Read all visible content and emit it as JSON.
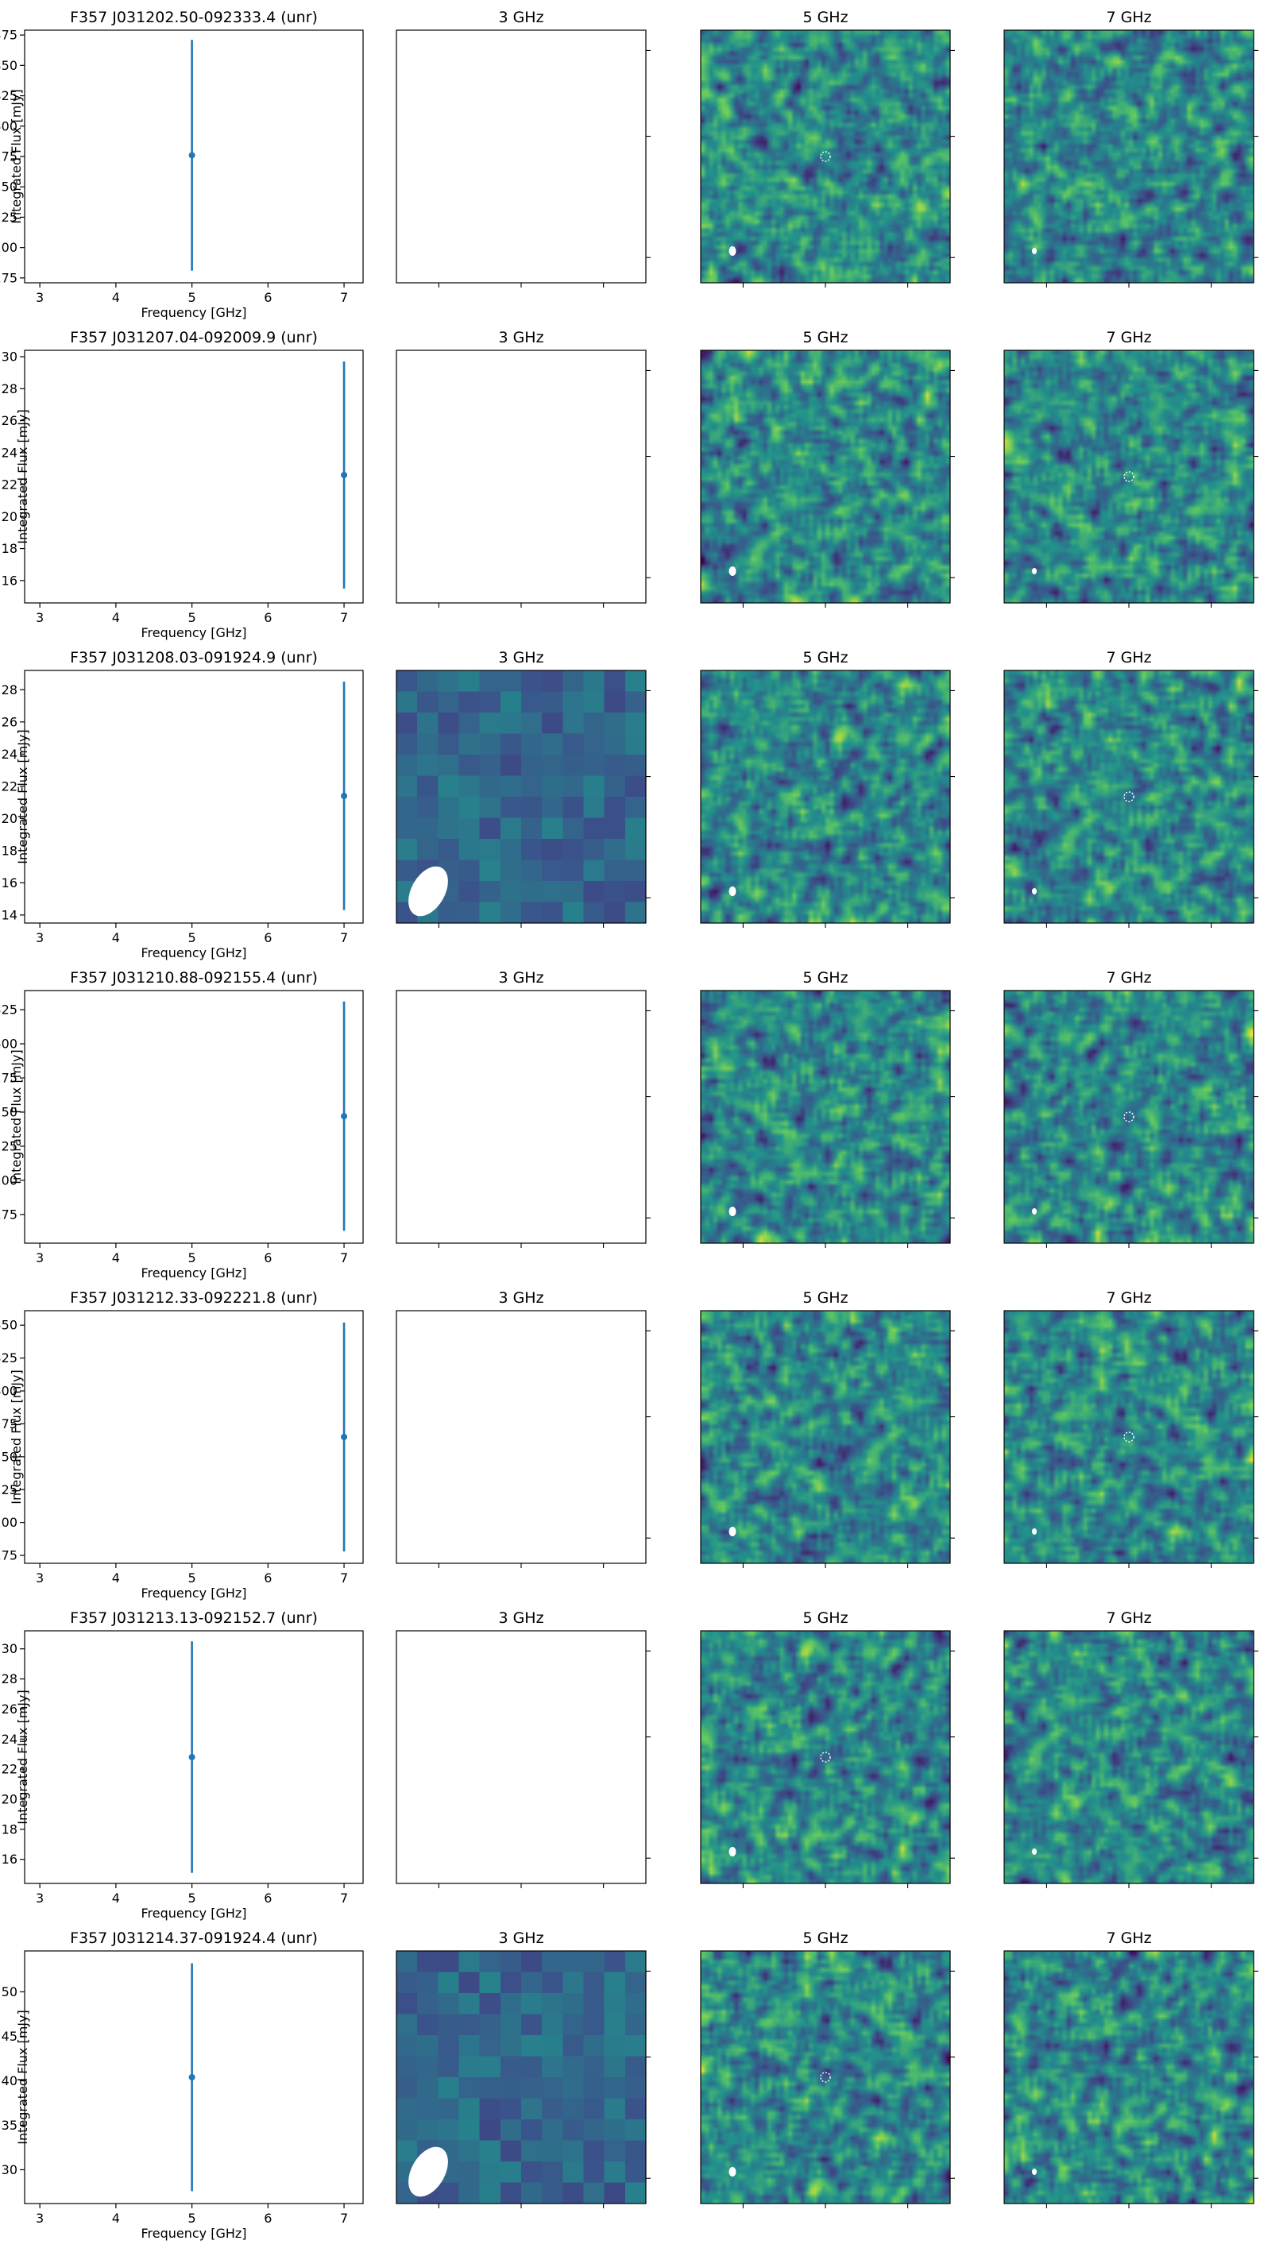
{
  "figure": {
    "background": "#ffffff",
    "series_color": "#1f77b4",
    "viridis": [
      "#440154",
      "#3b528b",
      "#21918c",
      "#5ec962",
      "#fde725"
    ],
    "empty_panel_color": "#ffffff"
  },
  "chart_data": [
    {
      "type": "scatter",
      "title": "F357 J031202.50-092333.4 (unr)",
      "xlabel": "Frequency [GHz]",
      "ylabel": "Integrated Flux [mJy]",
      "xlim": [
        2.8,
        7.25
      ],
      "ylim": [
        0.171,
        0.379
      ],
      "xticks": [
        "3",
        "4",
        "5",
        "6",
        "7"
      ],
      "yticks": [
        "0.175",
        "0.200",
        "0.225",
        "0.250",
        "0.275",
        "0.300",
        "0.325",
        "0.350",
        "0.375"
      ],
      "points": [
        {
          "x": 5,
          "y": 0.276,
          "err": 0.095
        }
      ],
      "image_panels": [
        {
          "title": "3 GHz",
          "image": "empty"
        },
        {
          "title": "5 GHz",
          "image": "noise",
          "source_marker": true
        },
        {
          "title": "7 GHz",
          "image": "noise",
          "source_marker": false
        }
      ]
    },
    {
      "type": "scatter",
      "title": "F357 J031207.04-092009.9 (unr)",
      "xlabel": "Frequency [GHz]",
      "ylabel": "Integrated Flux [mJy]",
      "xlim": [
        2.8,
        7.25
      ],
      "ylim": [
        0.146,
        0.304
      ],
      "xticks": [
        "3",
        "4",
        "5",
        "6",
        "7"
      ],
      "yticks": [
        "0.16",
        "0.18",
        "0.20",
        "0.22",
        "0.24",
        "0.26",
        "0.28",
        "0.30"
      ],
      "points": [
        {
          "x": 7,
          "y": 0.226,
          "err": 0.071
        }
      ],
      "image_panels": [
        {
          "title": "3 GHz",
          "image": "empty"
        },
        {
          "title": "5 GHz",
          "image": "noise",
          "source_marker": false
        },
        {
          "title": "7 GHz",
          "image": "noise",
          "source_marker": true
        }
      ]
    },
    {
      "type": "scatter",
      "title": "F357 J031208.03-091924.9 (unr)",
      "xlabel": "Frequency [GHz]",
      "ylabel": "Integrated Flux [mJy]",
      "xlim": [
        2.8,
        7.25
      ],
      "ylim": [
        0.135,
        0.292
      ],
      "xticks": [
        "3",
        "4",
        "5",
        "6",
        "7"
      ],
      "yticks": [
        "0.14",
        "0.16",
        "0.18",
        "0.20",
        "0.22",
        "0.24",
        "0.26",
        "0.28"
      ],
      "points": [
        {
          "x": 7,
          "y": 0.214,
          "err": 0.071
        }
      ],
      "image_panels": [
        {
          "title": "3 GHz",
          "image": "coarse",
          "source_marker": false
        },
        {
          "title": "5 GHz",
          "image": "noise",
          "source_marker": false
        },
        {
          "title": "7 GHz",
          "image": "noise",
          "source_marker": true
        }
      ]
    },
    {
      "type": "scatter",
      "title": "F357 J031210.88-092155.4 (unr)",
      "xlabel": "Frequency [GHz]",
      "ylabel": "Integrated Flux [mJy]",
      "xlim": [
        2.8,
        7.25
      ],
      "ylim": [
        0.154,
        0.339
      ],
      "xticks": [
        "3",
        "4",
        "5",
        "6",
        "7"
      ],
      "yticks": [
        "0.175",
        "0.200",
        "0.225",
        "0.250",
        "0.275",
        "0.300",
        "0.325"
      ],
      "points": [
        {
          "x": 7,
          "y": 0.247,
          "err": 0.084
        }
      ],
      "image_panels": [
        {
          "title": "3 GHz",
          "image": "empty"
        },
        {
          "title": "5 GHz",
          "image": "noise",
          "source_marker": false
        },
        {
          "title": "7 GHz",
          "image": "noise",
          "source_marker": true
        }
      ]
    },
    {
      "type": "scatter",
      "title": "F357 J031212.33-092221.8 (unr)",
      "xlabel": "Frequency [GHz]",
      "ylabel": "Integrated Flux [mJy]",
      "xlim": [
        2.8,
        7.25
      ],
      "ylim": [
        0.169,
        0.361
      ],
      "xticks": [
        "3",
        "4",
        "5",
        "6",
        "7"
      ],
      "yticks": [
        "0.175",
        "0.200",
        "0.225",
        "0.250",
        "0.275",
        "0.300",
        "0.325",
        "0.350"
      ],
      "points": [
        {
          "x": 7,
          "y": 0.265,
          "err": 0.087
        }
      ],
      "image_panels": [
        {
          "title": "3 GHz",
          "image": "empty"
        },
        {
          "title": "5 GHz",
          "image": "noise",
          "source_marker": false
        },
        {
          "title": "7 GHz",
          "image": "noise",
          "source_marker": true
        }
      ]
    },
    {
      "type": "scatter",
      "title": "F357 J031213.13-092152.7 (unr)",
      "xlabel": "Frequency [GHz]",
      "ylabel": "Integrated Flux [mJy]",
      "xlim": [
        2.8,
        7.25
      ],
      "ylim": [
        0.144,
        0.312
      ],
      "xticks": [
        "3",
        "4",
        "5",
        "6",
        "7"
      ],
      "yticks": [
        "0.16",
        "0.18",
        "0.20",
        "0.22",
        "0.24",
        "0.26",
        "0.28",
        "0.30"
      ],
      "points": [
        {
          "x": 5,
          "y": 0.228,
          "err": 0.077
        }
      ],
      "image_panels": [
        {
          "title": "3 GHz",
          "image": "empty"
        },
        {
          "title": "5 GHz",
          "image": "noise",
          "source_marker": true
        },
        {
          "title": "7 GHz",
          "image": "noise",
          "source_marker": false
        }
      ]
    },
    {
      "type": "scatter",
      "title": "F357 J031214.37-091924.4 (unr)",
      "xlabel": "Frequency [GHz]",
      "ylabel": "Integrated Flux [mJy]",
      "xlim": [
        2.8,
        7.25
      ],
      "ylim": [
        0.262,
        0.546
      ],
      "xticks": [
        "3",
        "4",
        "5",
        "6",
        "7"
      ],
      "yticks": [
        "0.30",
        "0.35",
        "0.40",
        "0.45",
        "0.50"
      ],
      "points": [
        {
          "x": 5,
          "y": 0.404,
          "err": 0.128
        }
      ],
      "image_panels": [
        {
          "title": "3 GHz",
          "image": "coarse",
          "source_marker": false
        },
        {
          "title": "5 GHz",
          "image": "noise",
          "source_marker": true
        },
        {
          "title": "7 GHz",
          "image": "noise",
          "source_marker": false
        }
      ]
    }
  ]
}
